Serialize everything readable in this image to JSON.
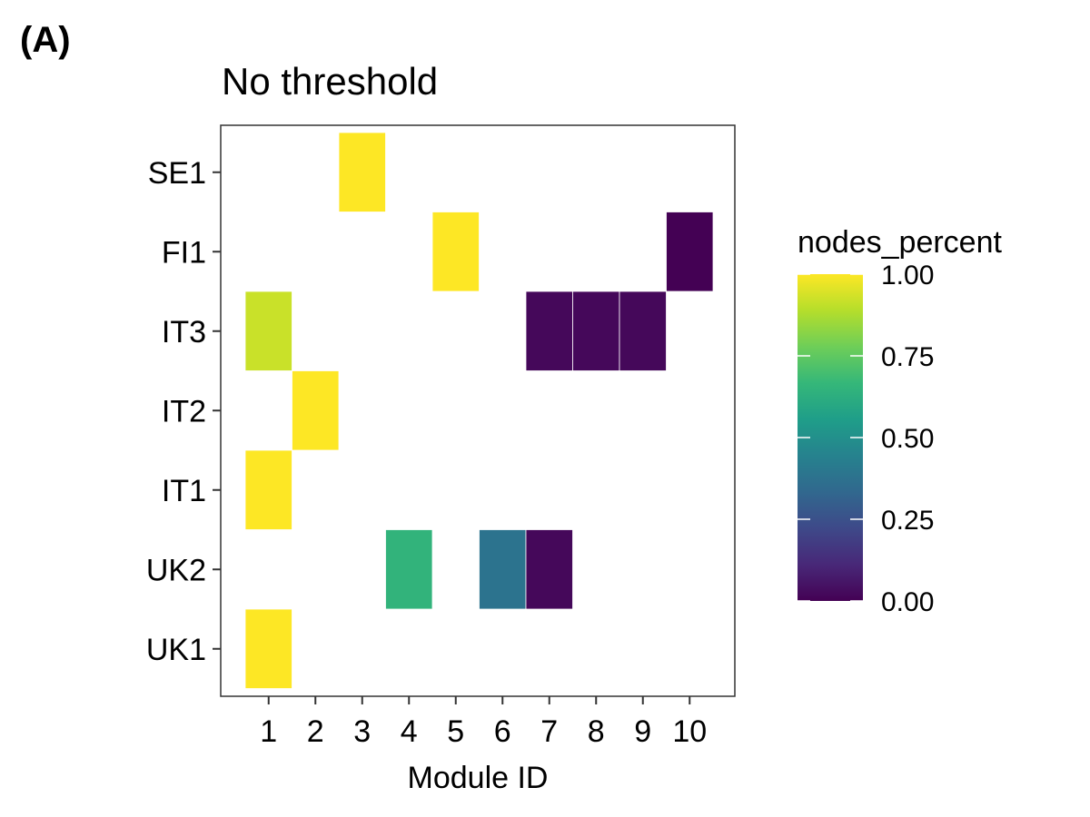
{
  "panel_label": "(A)",
  "chart_data": {
    "type": "heatmap",
    "title": "No threshold",
    "xlabel": "Module ID",
    "ylabel": "",
    "x_categories": [
      "1",
      "2",
      "3",
      "4",
      "5",
      "6",
      "7",
      "8",
      "9",
      "10"
    ],
    "y_categories": [
      "UK1",
      "UK2",
      "IT1",
      "IT2",
      "IT3",
      "FI1",
      "SE1"
    ],
    "cells": [
      {
        "x": "3",
        "y": "SE1",
        "value": 1.0
      },
      {
        "x": "5",
        "y": "FI1",
        "value": 1.0
      },
      {
        "x": "10",
        "y": "FI1",
        "value": 0.0
      },
      {
        "x": "1",
        "y": "IT3",
        "value": 0.92
      },
      {
        "x": "7",
        "y": "IT3",
        "value": 0.02
      },
      {
        "x": "8",
        "y": "IT3",
        "value": 0.02
      },
      {
        "x": "9",
        "y": "IT3",
        "value": 0.02
      },
      {
        "x": "2",
        "y": "IT2",
        "value": 1.0
      },
      {
        "x": "1",
        "y": "IT1",
        "value": 1.0
      },
      {
        "x": "4",
        "y": "UK2",
        "value": 0.65
      },
      {
        "x": "6",
        "y": "UK2",
        "value": 0.38
      },
      {
        "x": "7",
        "y": "UK2",
        "value": 0.02
      },
      {
        "x": "1",
        "y": "UK1",
        "value": 1.0
      }
    ],
    "legend": {
      "title": "nodes_percent",
      "placement": "right",
      "range": [
        0,
        1
      ],
      "ticks": [
        {
          "value": 0.0,
          "label": "0.00"
        },
        {
          "value": 0.25,
          "label": "0.25"
        },
        {
          "value": 0.5,
          "label": "0.50"
        },
        {
          "value": 0.75,
          "label": "0.75"
        },
        {
          "value": 1.0,
          "label": "1.00"
        }
      ],
      "colormap": [
        "#440154",
        "#482878",
        "#3e4989",
        "#31688e",
        "#26828e",
        "#1f9e89",
        "#35b779",
        "#6ece58",
        "#b5de2b",
        "#fde725"
      ]
    },
    "grid": false
  }
}
